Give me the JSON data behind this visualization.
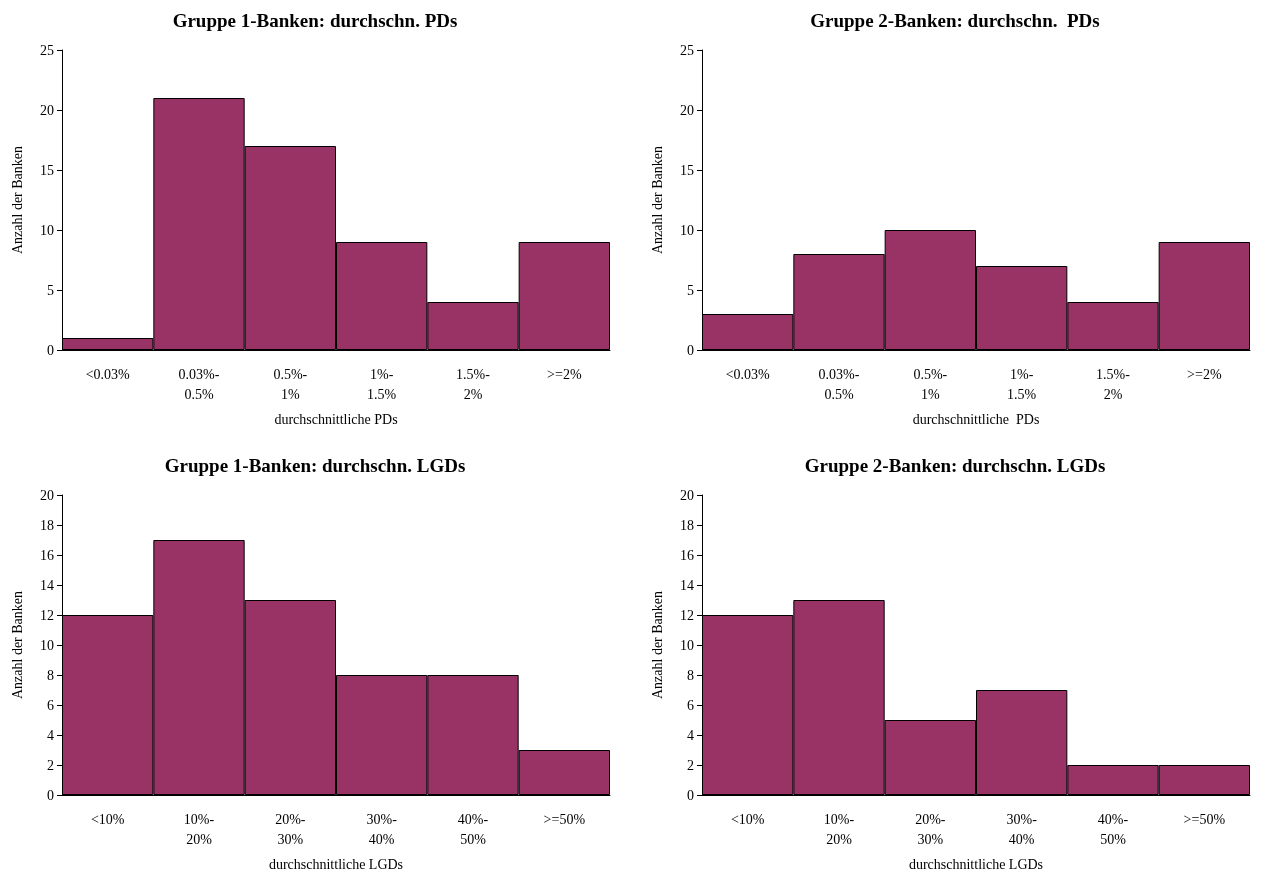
{
  "chart_data": [
    {
      "type": "bar",
      "title": "Gruppe 1-Banken: durchschn. PDs",
      "xlabel": "durchschnittliche PDs",
      "ylabel": "Anzahl der Banken",
      "categories": [
        "<0.03%",
        "0.03%-\n0.5%",
        "0.5%-\n1%",
        "1%-\n1.5%",
        "1.5%-\n2%",
        ">=2%"
      ],
      "values": [
        1,
        21,
        17,
        9,
        4,
        9
      ],
      "color": "#993366",
      "ylim": [
        0,
        25
      ],
      "yticks": [
        0,
        5,
        10,
        15,
        20,
        25
      ]
    },
    {
      "type": "bar",
      "title": "Gruppe 2-Banken: durchschn.  PDs",
      "xlabel": "durchschnittliche  PDs",
      "ylabel": "Anzahl der Banken",
      "categories": [
        "<0.03%",
        "0.03%-\n0.5%",
        "0.5%-\n1%",
        "1%-\n1.5%",
        "1.5%-\n2%",
        ">=2%"
      ],
      "values": [
        3,
        8,
        10,
        7,
        4,
        9
      ],
      "color": "#993366",
      "ylim": [
        0,
        25
      ],
      "yticks": [
        0,
        5,
        10,
        15,
        20,
        25
      ]
    },
    {
      "type": "bar",
      "title": "Gruppe 1-Banken: durchschn. LGDs",
      "xlabel": "durchschnittliche LGDs",
      "ylabel": "Anzahl der Banken",
      "categories": [
        "<10%",
        "10%-\n20%",
        "20%-\n30%",
        "30%-\n40%",
        "40%-\n50%",
        ">=50%"
      ],
      "values": [
        12,
        17,
        13,
        8,
        8,
        3
      ],
      "color": "#993366",
      "ylim": [
        0,
        20
      ],
      "yticks": [
        0,
        2,
        4,
        6,
        8,
        10,
        12,
        14,
        16,
        18,
        20
      ]
    },
    {
      "type": "bar",
      "title": "Gruppe 2-Banken: durchschn. LGDs",
      "xlabel": "durchschnittliche LGDs",
      "ylabel": "Anzahl der Banken",
      "categories": [
        "<10%",
        "10%-\n20%",
        "20%-\n30%",
        "30%-\n40%",
        "40%-\n50%",
        ">=50%"
      ],
      "values": [
        12,
        13,
        5,
        7,
        2,
        2
      ],
      "color": "#993366",
      "ylim": [
        0,
        20
      ],
      "yticks": [
        0,
        2,
        4,
        6,
        8,
        10,
        12,
        14,
        16,
        18,
        20
      ]
    }
  ]
}
